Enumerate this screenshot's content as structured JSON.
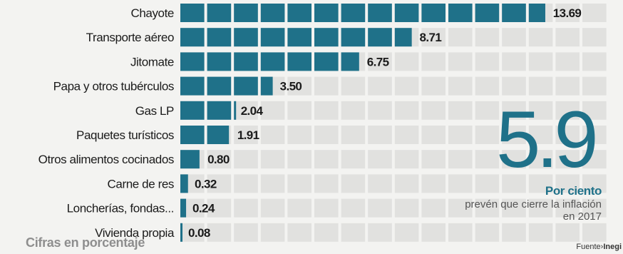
{
  "chart_data": {
    "type": "bar",
    "categories": [
      "Chayote",
      "Transporte aéreo",
      "Jitomate",
      "Papa y otros tubérculos",
      "Gas LP",
      "Paquetes turísticos",
      "Otros alimentos cocinados",
      "Carne de res",
      "Loncherías, fondas...",
      "Vivienda propia"
    ],
    "values": [
      13.69,
      8.71,
      6.75,
      3.5,
      2.04,
      1.91,
      0.8,
      0.32,
      0.24,
      0.08
    ],
    "value_labels": [
      "13.69",
      "8.71",
      "6.75",
      "3.50",
      "2.04",
      "1.91",
      "0.80",
      "0.32",
      "0.24",
      "0.08"
    ],
    "title": "",
    "xlabel": "",
    "ylabel": "",
    "xlim": [
      0,
      14
    ],
    "grid": true,
    "orientation": "horizontal",
    "bar_color": "#1f7189"
  },
  "caption": "Cifras en porcentaje",
  "highlight": {
    "number": "5.9",
    "unit": "Por ciento",
    "description": "prevén que cierre la inflación en 2017"
  },
  "source": {
    "prefix": "Fuente",
    "name": "Inegi"
  },
  "colors": {
    "accent": "#1f7189",
    "grid": "#e1e1df",
    "background": "#f3f3f1"
  }
}
